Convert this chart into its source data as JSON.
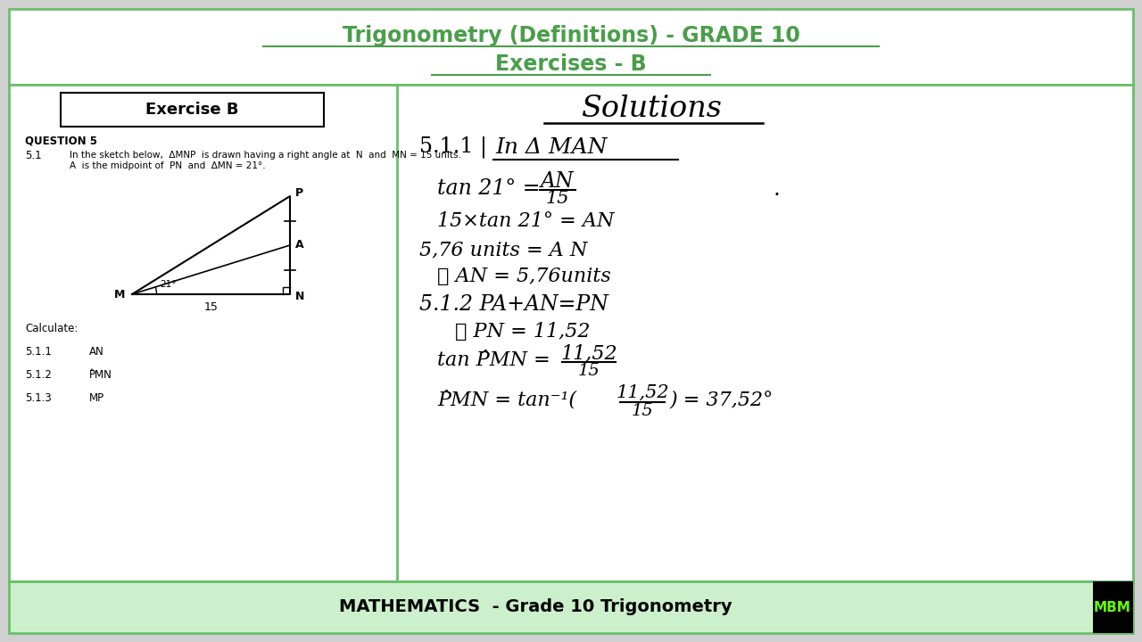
{
  "title_line1": "Trigonometry (Definitions) - GRADE 10",
  "title_line2": "Exercises - B",
  "title_color": "#4a9e4a",
  "border_color": "#6abf6a",
  "footer_bg": "#ccf0cc",
  "footer_text": "MATHEMATICS  - Grade 10 Trigonometry",
  "footer_logo": "MBM",
  "footer_logo_color": "#66ff00",
  "footer_logo_bg": "#000000",
  "exercise_title": "Exercise B",
  "question_label": "QUESTION 5",
  "panel_border": "#6abf6a",
  "outer_bg": "#d0d0d0"
}
